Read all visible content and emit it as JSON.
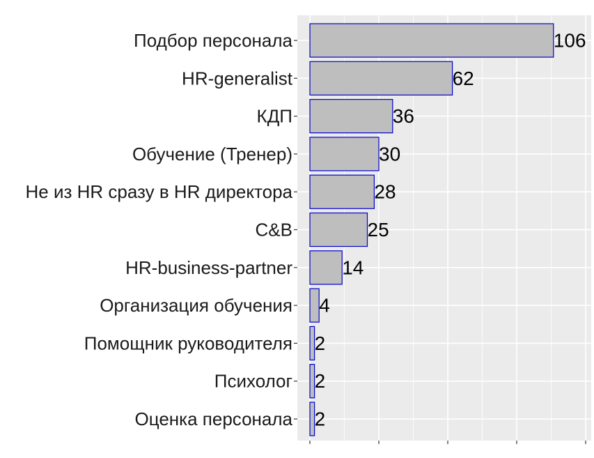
{
  "chart_data": {
    "type": "bar",
    "orientation": "horizontal",
    "title": "",
    "xlabel": "",
    "ylabel": "",
    "categories": [
      "Подбор персонала",
      "HR-generalist",
      "КДП",
      "Обучение (Тренер)",
      "Не из HR сразу в HR директора",
      "C&B",
      "HR-business-partner",
      "Организация обучения",
      "Помощник руководителя",
      "Психолог",
      "Оценка персонала"
    ],
    "values": [
      106,
      62,
      36,
      30,
      28,
      25,
      14,
      4,
      2,
      2,
      2
    ],
    "value_axis_range": [
      0,
      120
    ],
    "value_axis_tick_labels_shown": false,
    "grid": true,
    "legend": "none",
    "colors": {
      "panel_background": "#ebebeb",
      "grid": "#ffffff",
      "bar_fill": "#bebebe",
      "bar_outline": "#0000cd",
      "axis_text": "#1a1a1a",
      "value_text": "#000000"
    }
  }
}
